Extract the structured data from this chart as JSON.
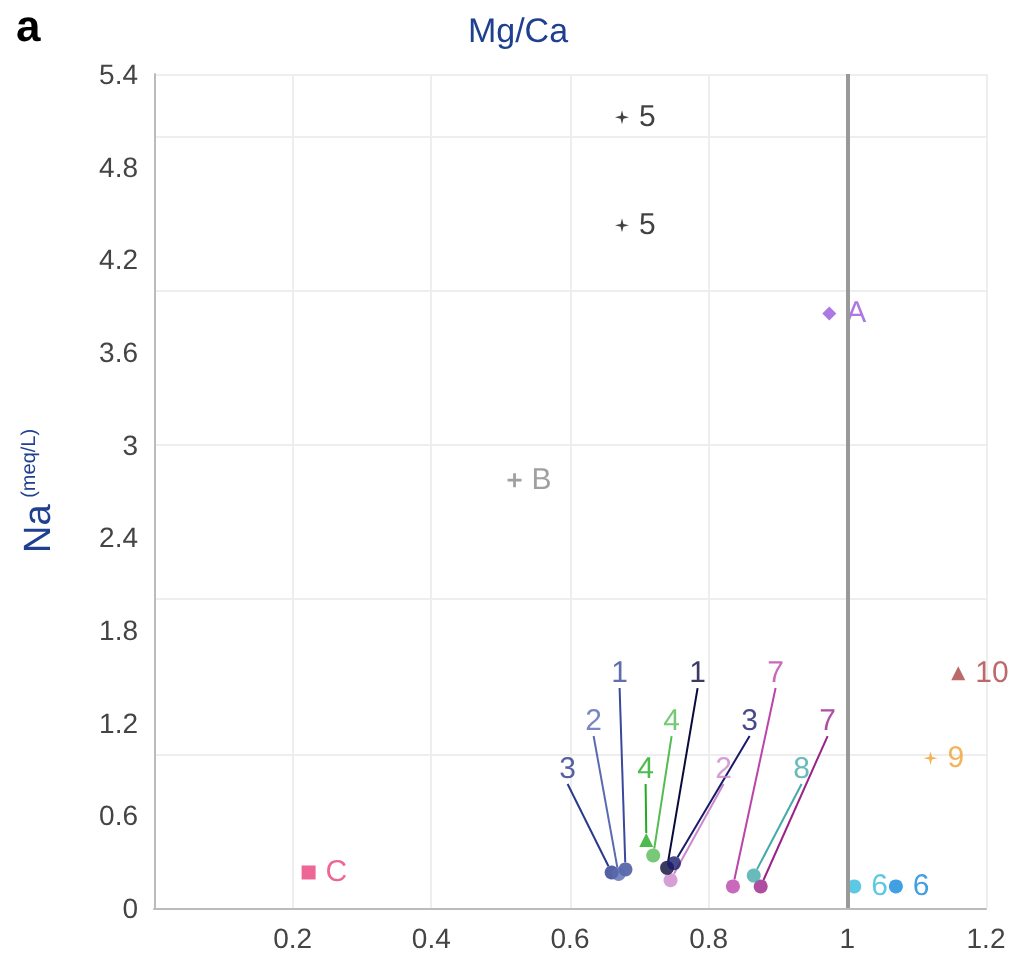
{
  "chart_data": {
    "type": "scatter",
    "title": "Mg/Ca",
    "ylabel": "Na $^{(meq/L)}$",
    "annotations": [
      "a"
    ],
    "xlim": [
      0,
      1.2
    ],
    "xticks": [
      0.2,
      0.4,
      0.6,
      0.8,
      1,
      1.2
    ],
    "ylim": [
      0,
      5.4
    ],
    "yticks": [
      0,
      0.6,
      1.2,
      1.8,
      2.4,
      3.0,
      3.6,
      4.2,
      4.8,
      5.4
    ],
    "grid": true,
    "legend": false,
    "ref_lines": [
      {
        "axis": "x",
        "value": 1,
        "color": "#999999"
      }
    ],
    "series": [
      {
        "name": "5",
        "color": "#111111",
        "marker": "star",
        "x": [
          0.675
        ],
        "values": [
          5.12
        ]
      },
      {
        "name": "5",
        "color": "#111111",
        "marker": "star",
        "x": [
          0.675
        ],
        "values": [
          4.42
        ]
      },
      {
        "name": "A",
        "color": "#9955dd",
        "marker": "diamond",
        "x": [
          0.974
        ],
        "values": [
          3.85
        ]
      },
      {
        "name": "B",
        "color": "#888888",
        "marker": "cross",
        "x": [
          0.52
        ],
        "values": [
          2.77
        ]
      },
      {
        "name": "10",
        "color": "#aa4444",
        "marker": "triangle",
        "x": [
          1.16
        ],
        "values": [
          1.52
        ]
      },
      {
        "name": "9",
        "color": "#f0a030",
        "marker": "star",
        "x": [
          1.12
        ],
        "values": [
          0.97
        ]
      },
      {
        "name": "C",
        "color": "#e8407a",
        "marker": "square",
        "x": [
          0.223
        ],
        "values": [
          0.23
        ]
      },
      {
        "name": "3",
        "color": "#2a3a8a",
        "marker": "circle",
        "x": [
          0.66
        ],
        "values": [
          0.23
        ]
      },
      {
        "name": "1",
        "color": "#3a4a9a",
        "marker": "circle",
        "x": [
          0.68
        ],
        "values": [
          0.25
        ]
      },
      {
        "name": "2",
        "color": "#cc88cc",
        "marker": "circle",
        "x": [
          0.745
        ],
        "values": [
          0.18
        ]
      },
      {
        "name": "4",
        "color": "#22aa22",
        "marker": "triangle",
        "x": [
          0.71
        ],
        "values": [
          0.44
        ]
      },
      {
        "name": "4",
        "color": "#55bb55",
        "marker": "circle",
        "x": [
          0.72
        ],
        "values": [
          0.34
        ]
      },
      {
        "name": "2",
        "color": "#5a6ab0",
        "marker": "circle",
        "x": [
          0.67
        ],
        "values": [
          0.22
        ]
      },
      {
        "name": "1",
        "color": "#0a0a3a",
        "marker": "circle",
        "x": [
          0.74
        ],
        "values": [
          0.26
        ]
      },
      {
        "name": "3",
        "color": "#1a1a6a",
        "marker": "circle",
        "x": [
          0.75
        ],
        "values": [
          0.29
        ]
      },
      {
        "name": "7",
        "color": "#992288",
        "marker": "circle",
        "x": [
          0.875
        ],
        "values": [
          0.14
        ]
      },
      {
        "name": "8",
        "color": "#44aaaa",
        "marker": "circle",
        "x": [
          0.865
        ],
        "values": [
          0.21
        ]
      },
      {
        "name": "7",
        "color": "#bb44aa",
        "marker": "circle",
        "x": [
          0.835
        ],
        "values": [
          0.14
        ]
      },
      {
        "name": "6",
        "color": "#33bbdd",
        "marker": "circle",
        "x": [
          1.01
        ],
        "values": [
          0.14
        ]
      },
      {
        "name": "6",
        "color": "#1188dd",
        "marker": "circle",
        "x": [
          1.07
        ],
        "values": [
          0.14
        ]
      }
    ]
  }
}
